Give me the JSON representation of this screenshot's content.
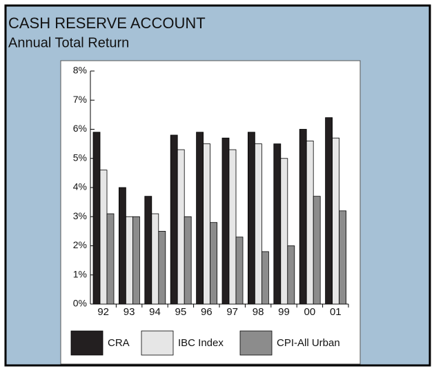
{
  "chart_data": {
    "type": "bar",
    "title": "CASH RESERVE ACCOUNT",
    "subtitle": "Annual Total Return",
    "categories": [
      "92",
      "93",
      "94",
      "95",
      "96",
      "97",
      "98",
      "99",
      "00",
      "01"
    ],
    "series": [
      {
        "name": "CRA",
        "color": "#231f20",
        "values": [
          5.9,
          4.0,
          3.7,
          5.8,
          5.9,
          5.7,
          5.9,
          5.5,
          6.0,
          6.4
        ]
      },
      {
        "name": "IBC Index",
        "color": "#e6e6e6",
        "values": [
          4.6,
          3.0,
          3.1,
          5.3,
          5.5,
          5.3,
          5.5,
          5.0,
          5.6,
          5.7
        ]
      },
      {
        "name": "CPI-All Urban",
        "color": "#8c8c8c",
        "values": [
          3.1,
          3.0,
          2.5,
          3.0,
          2.8,
          2.3,
          1.8,
          2.0,
          3.7,
          3.2
        ]
      }
    ],
    "ylim": [
      0,
      8
    ],
    "yticks": [
      {
        "value": 0,
        "label": "0%"
      },
      {
        "value": 1,
        "label": "1%"
      },
      {
        "value": 2,
        "label": "2%"
      },
      {
        "value": 3,
        "label": "3%"
      },
      {
        "value": 4,
        "label": "4%"
      },
      {
        "value": 5,
        "label": "5%"
      },
      {
        "value": 6,
        "label": "6%"
      },
      {
        "value": 7,
        "label": "7%"
      },
      {
        "value": 8,
        "label": "8%"
      }
    ],
    "legend": "bottom"
  }
}
